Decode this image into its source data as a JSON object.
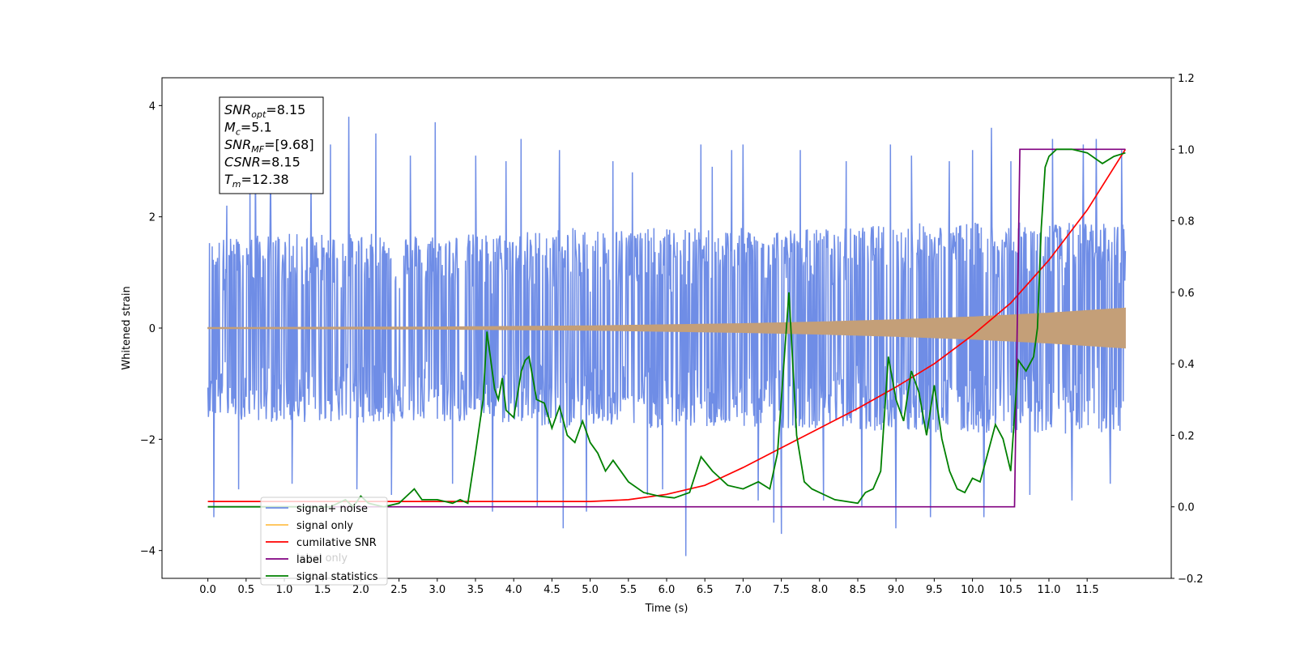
{
  "chart_data": {
    "type": "line",
    "xlabel": "Time (s)",
    "ylabel": "Whitened strain",
    "xlim": [
      -0.6,
      12.6
    ],
    "ylim": [
      -4.5,
      4.5
    ],
    "y2lim": [
      -0.2,
      1.2
    ],
    "x_ticks": [
      "0.0",
      "0.5",
      "1.0",
      "1.5",
      "2.0",
      "2.5",
      "3.0",
      "3.5",
      "4.0",
      "4.5",
      "5.0",
      "5.5",
      "6.0",
      "6.5",
      "7.0",
      "7.5",
      "8.0",
      "8.5",
      "9.0",
      "9.5",
      "10.0",
      "10.5",
      "11.0",
      "11.5"
    ],
    "y_ticks": [
      "4",
      "2",
      "0",
      "−2",
      "−4"
    ],
    "y2_ticks": [
      "1.2",
      "1.0",
      "0.8",
      "0.6",
      "0.4",
      "0.2",
      "0.0",
      "−0.2"
    ],
    "annotation": {
      "lines": [
        {
          "base": "SNR",
          "sub": "opt",
          "rest": "=8.15"
        },
        {
          "base": "M",
          "sub": "c",
          "rest": "=5.1"
        },
        {
          "base": "SNR",
          "sub": "MF",
          "rest": "=[9.68]"
        },
        {
          "base": "CSNR",
          "sub": "",
          "rest": "=8.15"
        },
        {
          "base": "T",
          "sub": "m",
          "rest": "=12.38"
        }
      ]
    },
    "legend": {
      "placement": "lower-left",
      "entries": [
        {
          "label": "signal+ noise",
          "color": "#6f8de6"
        },
        {
          "label": "signal only",
          "color": "#ffc04d"
        },
        {
          "label": "cumilative SNR",
          "color": "#ff0000"
        },
        {
          "label": "label",
          "color": "#800080"
        },
        {
          "label": "signal statistics",
          "color": "#008000"
        }
      ],
      "hidden_text": "label only"
    },
    "series": [
      {
        "name": "signal+ noise",
        "axis": "left",
        "color": "#6f8de6",
        "t_range": [
          0,
          12.0
        ],
        "envelope_upper": [
          1.6,
          1.7,
          1.7,
          1.7,
          1.7,
          1.8,
          1.8,
          1.8,
          1.8,
          1.8,
          1.9,
          1.9,
          1.9,
          1.9
        ],
        "envelope_lower": [
          -1.6,
          -1.7,
          -1.7,
          -1.7,
          -1.7,
          -1.8,
          -1.8,
          -1.8,
          -1.8,
          -1.8,
          -1.9,
          -1.9,
          -1.9,
          -1.9
        ],
        "spikes": [
          {
            "t": 0.08,
            "v": -3.4
          },
          {
            "t": 0.25,
            "v": 2.2
          },
          {
            "t": 0.4,
            "v": -2.9
          },
          {
            "t": 0.55,
            "v": 2.6
          },
          {
            "t": 0.62,
            "v": 3.2
          },
          {
            "t": 0.82,
            "v": 2.9
          },
          {
            "t": 1.1,
            "v": -2.8
          },
          {
            "t": 1.35,
            "v": 2.7
          },
          {
            "t": 1.6,
            "v": 3.3
          },
          {
            "t": 1.84,
            "v": 3.8
          },
          {
            "t": 1.95,
            "v": -2.9
          },
          {
            "t": 2.2,
            "v": 3.5
          },
          {
            "t": 2.4,
            "v": -3.0
          },
          {
            "t": 2.65,
            "v": 3.1
          },
          {
            "t": 2.97,
            "v": 3.7
          },
          {
            "t": 3.2,
            "v": -2.8
          },
          {
            "t": 3.5,
            "v": 3.1
          },
          {
            "t": 3.72,
            "v": -3.3
          },
          {
            "t": 3.9,
            "v": 3.0
          },
          {
            "t": 4.1,
            "v": 3.4
          },
          {
            "t": 4.31,
            "v": -3.2
          },
          {
            "t": 4.6,
            "v": 3.2
          },
          {
            "t": 4.65,
            "v": -3.6
          },
          {
            "t": 4.95,
            "v": -3.3
          },
          {
            "t": 5.3,
            "v": 3.0
          },
          {
            "t": 5.55,
            "v": 2.8
          },
          {
            "t": 5.75,
            "v": -3.0
          },
          {
            "t": 5.95,
            "v": -2.9
          },
          {
            "t": 6.25,
            "v": -4.1
          },
          {
            "t": 6.45,
            "v": 3.3
          },
          {
            "t": 6.6,
            "v": 2.9
          },
          {
            "t": 6.85,
            "v": 3.2
          },
          {
            "t": 7.0,
            "v": 3.3
          },
          {
            "t": 7.2,
            "v": -3.1
          },
          {
            "t": 7.4,
            "v": -3.5
          },
          {
            "t": 7.5,
            "v": -3.7
          },
          {
            "t": 7.75,
            "v": 3.2
          },
          {
            "t": 8.05,
            "v": -3.1
          },
          {
            "t": 8.35,
            "v": 3.0
          },
          {
            "t": 8.55,
            "v": -3.2
          },
          {
            "t": 8.93,
            "v": 3.3
          },
          {
            "t": 9.0,
            "v": -3.6
          },
          {
            "t": 9.2,
            "v": 3.1
          },
          {
            "t": 9.45,
            "v": -3.4
          },
          {
            "t": 9.7,
            "v": 3.0
          },
          {
            "t": 10.0,
            "v": 3.2
          },
          {
            "t": 10.15,
            "v": -3.4
          },
          {
            "t": 10.25,
            "v": 3.6
          },
          {
            "t": 10.5,
            "v": 3.0
          },
          {
            "t": 10.75,
            "v": -3.0
          },
          {
            "t": 11.05,
            "v": 3.4
          },
          {
            "t": 11.3,
            "v": -3.1
          },
          {
            "t": 11.45,
            "v": 3.3
          },
          {
            "t": 11.62,
            "v": 3.4
          },
          {
            "t": 11.8,
            "v": -2.8
          },
          {
            "t": 11.95,
            "v": 3.2
          }
        ]
      },
      {
        "name": "signal only",
        "axis": "left",
        "color": "#c49f78",
        "amplitude_t": [
          0,
          3,
          5,
          6,
          7,
          8,
          9,
          10,
          11,
          12.0
        ],
        "amplitude": [
          0.01,
          0.02,
          0.04,
          0.06,
          0.08,
          0.11,
          0.15,
          0.2,
          0.27,
          0.36
        ]
      },
      {
        "name": "cumilative SNR",
        "axis": "right",
        "color": "#ff0000",
        "x": [
          0,
          5.0,
          5.5,
          6.0,
          6.5,
          7.0,
          7.5,
          8.0,
          8.5,
          9.0,
          9.5,
          10.0,
          10.5,
          11.0,
          11.5,
          12.0
        ],
        "y": [
          0.015,
          0.015,
          0.02,
          0.035,
          0.06,
          0.11,
          0.165,
          0.22,
          0.275,
          0.335,
          0.4,
          0.48,
          0.57,
          0.69,
          0.83,
          1.0
        ]
      },
      {
        "name": "label",
        "axis": "right",
        "color": "#800080",
        "x": [
          0,
          10.55,
          10.62,
          12.0
        ],
        "y": [
          0.0,
          0.0,
          1.0,
          1.0
        ]
      },
      {
        "name": "signal statistics",
        "axis": "right",
        "color": "#008000",
        "x": [
          0,
          1.6,
          1.8,
          1.9,
          2.0,
          2.1,
          2.3,
          2.5,
          2.7,
          2.8,
          3.0,
          3.2,
          3.3,
          3.4,
          3.5,
          3.6,
          3.65,
          3.75,
          3.8,
          3.85,
          3.9,
          4.0,
          4.1,
          4.15,
          4.2,
          4.3,
          4.4,
          4.5,
          4.6,
          4.7,
          4.8,
          4.9,
          5.0,
          5.1,
          5.2,
          5.3,
          5.5,
          5.7,
          5.9,
          6.1,
          6.3,
          6.45,
          6.6,
          6.7,
          6.8,
          7.0,
          7.2,
          7.35,
          7.45,
          7.6,
          7.7,
          7.8,
          7.9,
          8.0,
          8.2,
          8.5,
          8.6,
          8.7,
          8.8,
          8.9,
          9.0,
          9.1,
          9.2,
          9.3,
          9.4,
          9.5,
          9.6,
          9.7,
          9.8,
          9.9,
          10.0,
          10.1,
          10.2,
          10.3,
          10.4,
          10.5,
          10.6,
          10.7,
          10.8,
          10.85,
          10.9,
          10.95,
          11.0,
          11.1,
          11.3,
          11.5,
          11.7,
          11.85,
          12.0
        ],
        "y": [
          0.0,
          0.0,
          0.02,
          0.0,
          0.03,
          0.01,
          0.0,
          0.01,
          0.05,
          0.02,
          0.02,
          0.01,
          0.02,
          0.01,
          0.15,
          0.3,
          0.49,
          0.33,
          0.3,
          0.36,
          0.27,
          0.25,
          0.38,
          0.41,
          0.42,
          0.3,
          0.29,
          0.22,
          0.28,
          0.2,
          0.18,
          0.24,
          0.18,
          0.15,
          0.1,
          0.13,
          0.07,
          0.04,
          0.03,
          0.025,
          0.04,
          0.14,
          0.1,
          0.08,
          0.06,
          0.05,
          0.07,
          0.05,
          0.15,
          0.6,
          0.2,
          0.07,
          0.05,
          0.04,
          0.02,
          0.01,
          0.04,
          0.05,
          0.1,
          0.42,
          0.3,
          0.24,
          0.38,
          0.32,
          0.2,
          0.34,
          0.19,
          0.1,
          0.05,
          0.04,
          0.08,
          0.07,
          0.15,
          0.23,
          0.19,
          0.1,
          0.41,
          0.38,
          0.42,
          0.5,
          0.78,
          0.95,
          0.98,
          1.0,
          1.0,
          0.99,
          0.96,
          0.98,
          0.99
        ]
      }
    ]
  }
}
